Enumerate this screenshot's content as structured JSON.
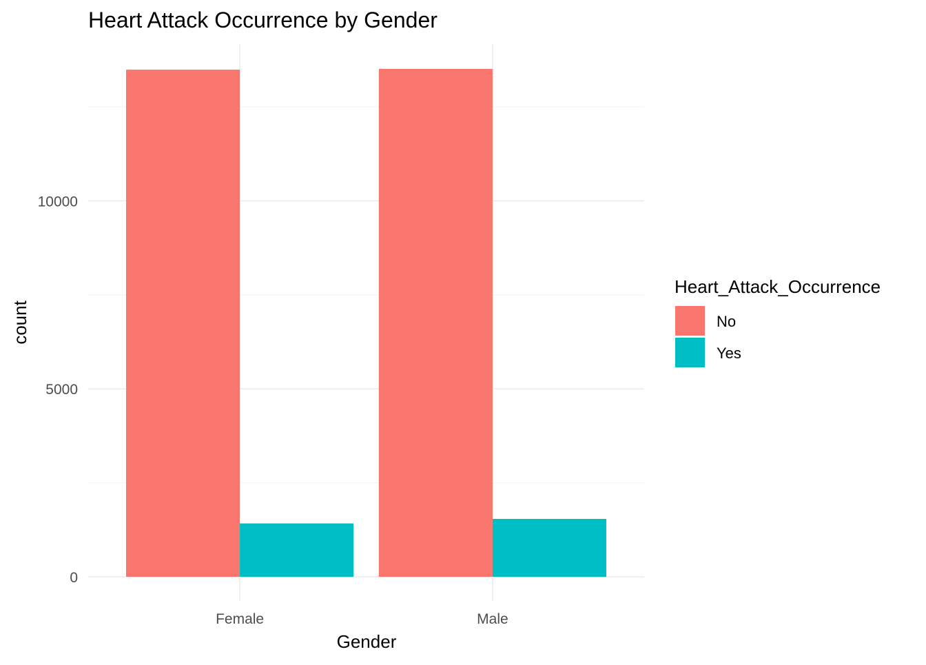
{
  "chart_data": {
    "type": "bar",
    "title": "Heart Attack Occurrence by Gender",
    "xlabel": "Gender",
    "ylabel": "count",
    "categories": [
      "Female",
      "Male"
    ],
    "series": [
      {
        "name": "No",
        "color": "#F8766D",
        "values": [
          13490,
          13510
        ]
      },
      {
        "name": "Yes",
        "color": "#00BFC4",
        "values": [
          1420,
          1540
        ]
      }
    ],
    "ylim": [
      0,
      14000
    ],
    "yticks": [
      0,
      5000,
      10000
    ],
    "yticks_minor": [
      2500,
      7500,
      12500
    ],
    "legend": {
      "title": "Heart_Attack_Occurrence",
      "placement": "right"
    },
    "grid": true
  }
}
